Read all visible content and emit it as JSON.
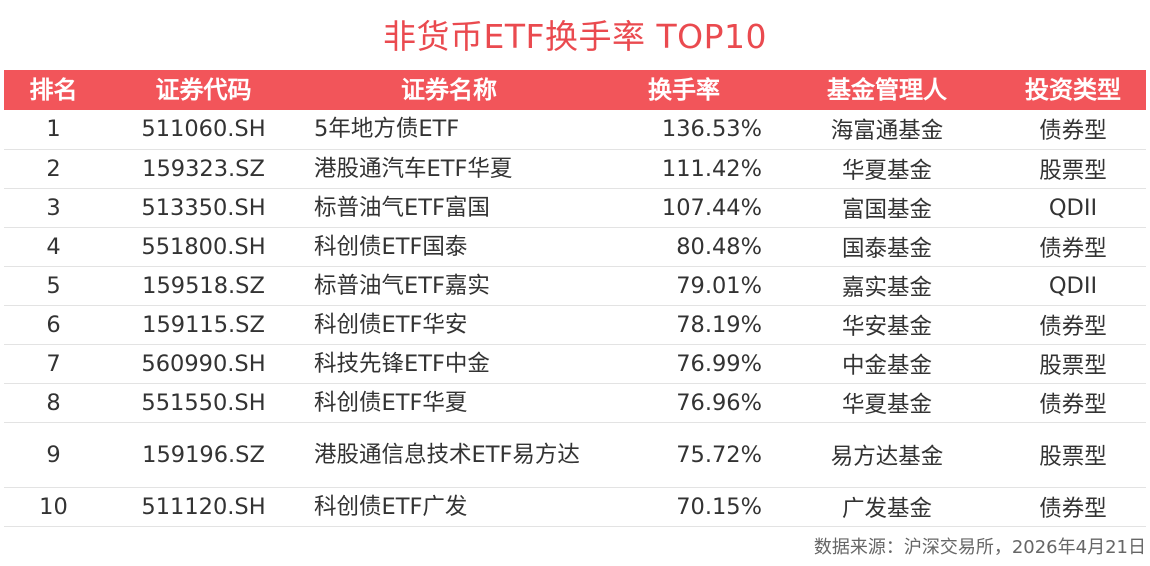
{
  "title": "非货币ETF换手率 TOP10",
  "headers": {
    "rank": "排名",
    "code": "证券代码",
    "name": "证券名称",
    "rate": "换手率",
    "manager": "基金管理人",
    "type": "投资类型"
  },
  "rows": [
    {
      "rank": "1",
      "code": "511060.SH",
      "name": "5年地方债ETF",
      "rate": "136.53%",
      "manager": "海富通基金",
      "type": "债券型"
    },
    {
      "rank": "2",
      "code": "159323.SZ",
      "name": "港股通汽车ETF华夏",
      "rate": "111.42%",
      "manager": "华夏基金",
      "type": "股票型"
    },
    {
      "rank": "3",
      "code": "513350.SH",
      "name": "标普油气ETF富国",
      "rate": "107.44%",
      "manager": "富国基金",
      "type": "QDII"
    },
    {
      "rank": "4",
      "code": "551800.SH",
      "name": "科创债ETF国泰",
      "rate": "80.48%",
      "manager": "国泰基金",
      "type": "债券型"
    },
    {
      "rank": "5",
      "code": "159518.SZ",
      "name": "标普油气ETF嘉实",
      "rate": "79.01%",
      "manager": "嘉实基金",
      "type": "QDII"
    },
    {
      "rank": "6",
      "code": "159115.SZ",
      "name": "科创债ETF华安",
      "rate": "78.19%",
      "manager": "华安基金",
      "type": "债券型"
    },
    {
      "rank": "7",
      "code": "560990.SH",
      "name": "科技先锋ETF中金",
      "rate": "76.99%",
      "manager": "中金基金",
      "type": "股票型"
    },
    {
      "rank": "8",
      "code": "551550.SH",
      "name": "科创债ETF华夏",
      "rate": "76.96%",
      "manager": "华夏基金",
      "type": "债券型"
    },
    {
      "rank": "9",
      "code": "159196.SZ",
      "name": "港股通信息技术ETF易方达",
      "rate": "75.72%",
      "manager": "易方达基金",
      "type": "股票型"
    },
    {
      "rank": "10",
      "code": "511120.SH",
      "name": "科创债ETF广发",
      "rate": "70.15%",
      "manager": "广发基金",
      "type": "债券型"
    }
  ],
  "source": "数据来源：沪深交易所，2026年4月21日",
  "colors": {
    "title": "#ea4a4f",
    "header_bg": "#f2555a",
    "header_text": "#ffffff",
    "row_divider": "#e3e3e3"
  }
}
